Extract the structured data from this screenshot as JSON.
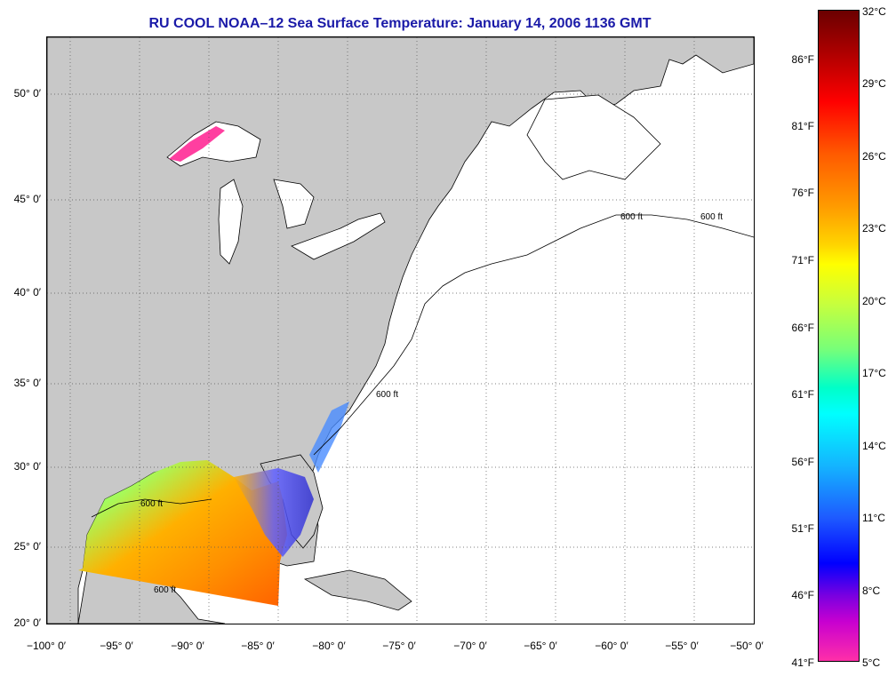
{
  "title": "RU COOL  NOAA–12  Sea Surface Temperature:  January 14, 2006 1136 GMT",
  "map": {
    "lat_labels": [
      "50° 0′",
      "45° 0′",
      "40° 0′",
      "35° 0′",
      "30° 0′",
      "25° 0′",
      "20° 0′"
    ],
    "lon_labels": [
      "−100° 0′",
      "−95° 0′",
      "−90° 0′",
      "−85° 0′",
      "−80° 0′",
      "−75° 0′",
      "−70° 0′",
      "−65° 0′",
      "−60° 0′",
      "−55° 0′",
      "−50° 0′"
    ],
    "contour_label": "600 ft",
    "colors": {
      "land": "#c8c8c8",
      "water": "#ffffff",
      "grid": "#555555"
    }
  },
  "colorbar": {
    "fahrenheit": [
      "86°F",
      "81°F",
      "76°F",
      "71°F",
      "66°F",
      "61°F",
      "56°F",
      "51°F",
      "46°F",
      "41°F"
    ],
    "celsius": [
      "32°C",
      "29°C",
      "26°C",
      "23°C",
      "20°C",
      "17°C",
      "14°C",
      "11°C",
      "8°C",
      "5°C"
    ]
  }
}
